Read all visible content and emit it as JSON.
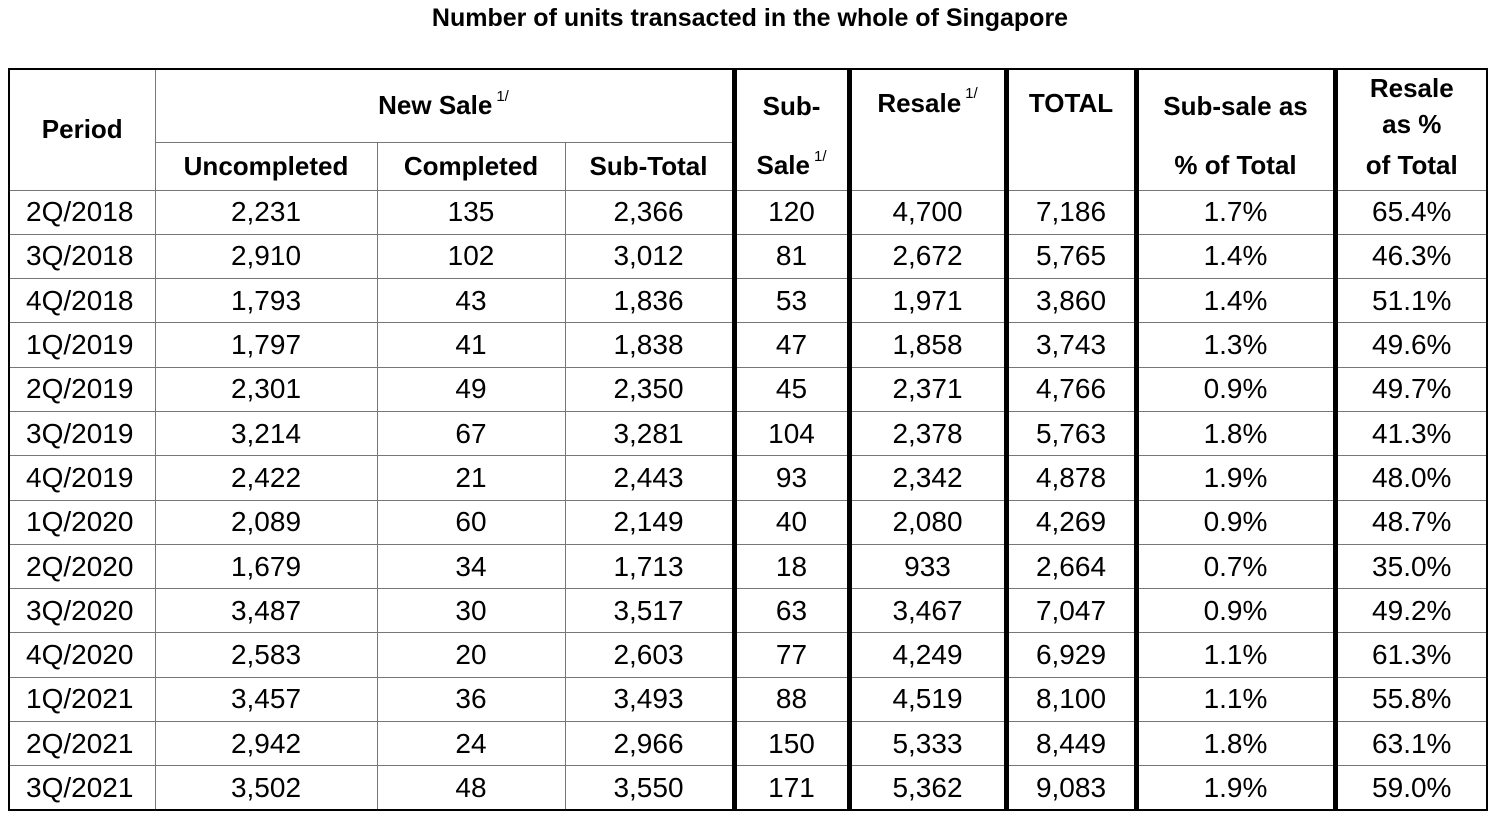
{
  "title": "Number of units transacted in the whole of Singapore",
  "headers": {
    "period": "Period",
    "new_sale": "New Sale",
    "new_sale_fn": "1/",
    "uncompleted": "Uncompleted",
    "completed": "Completed",
    "sub_total": "Sub-Total",
    "sub_sale_line1": "Sub-",
    "sub_sale_line2": "Sale",
    "sub_sale_fn": "1/",
    "resale": "Resale",
    "resale_fn": "1/",
    "total": "TOTAL",
    "sub_sale_pct_line1": "Sub-sale as",
    "sub_sale_pct_line2": "% of Total",
    "resale_pct_line1": "Resale",
    "resale_pct_line2": "as %",
    "resale_pct_line3": "of Total"
  },
  "rows": [
    [
      "2Q/2018",
      "2,231",
      "135",
      "2,366",
      "120",
      "4,700",
      "7,186",
      "1.7%",
      "65.4%"
    ],
    [
      "3Q/2018",
      "2,910",
      "102",
      "3,012",
      "81",
      "2,672",
      "5,765",
      "1.4%",
      "46.3%"
    ],
    [
      "4Q/2018",
      "1,793",
      "43",
      "1,836",
      "53",
      "1,971",
      "3,860",
      "1.4%",
      "51.1%"
    ],
    [
      "1Q/2019",
      "1,797",
      "41",
      "1,838",
      "47",
      "1,858",
      "3,743",
      "1.3%",
      "49.6%"
    ],
    [
      "2Q/2019",
      "2,301",
      "49",
      "2,350",
      "45",
      "2,371",
      "4,766",
      "0.9%",
      "49.7%"
    ],
    [
      "3Q/2019",
      "3,214",
      "67",
      "3,281",
      "104",
      "2,378",
      "5,763",
      "1.8%",
      "41.3%"
    ],
    [
      "4Q/2019",
      "2,422",
      "21",
      "2,443",
      "93",
      "2,342",
      "4,878",
      "1.9%",
      "48.0%"
    ],
    [
      "1Q/2020",
      "2,089",
      "60",
      "2,149",
      "40",
      "2,080",
      "4,269",
      "0.9%",
      "48.7%"
    ],
    [
      "2Q/2020",
      "1,679",
      "34",
      "1,713",
      "18",
      "933",
      "2,664",
      "0.7%",
      "35.0%"
    ],
    [
      "3Q/2020",
      "3,487",
      "30",
      "3,517",
      "63",
      "3,467",
      "7,047",
      "0.9%",
      "49.2%"
    ],
    [
      "4Q/2020",
      "2,583",
      "20",
      "2,603",
      "77",
      "4,249",
      "6,929",
      "1.1%",
      "61.3%"
    ],
    [
      "1Q/2021",
      "3,457",
      "36",
      "3,493",
      "88",
      "4,519",
      "8,100",
      "1.1%",
      "55.8%"
    ],
    [
      "2Q/2021",
      "2,942",
      "24",
      "2,966",
      "150",
      "5,333",
      "8,449",
      "1.8%",
      "63.1%"
    ],
    [
      "3Q/2021",
      "3,502",
      "48",
      "3,550",
      "171",
      "5,362",
      "9,083",
      "1.9%",
      "59.0%"
    ]
  ]
}
